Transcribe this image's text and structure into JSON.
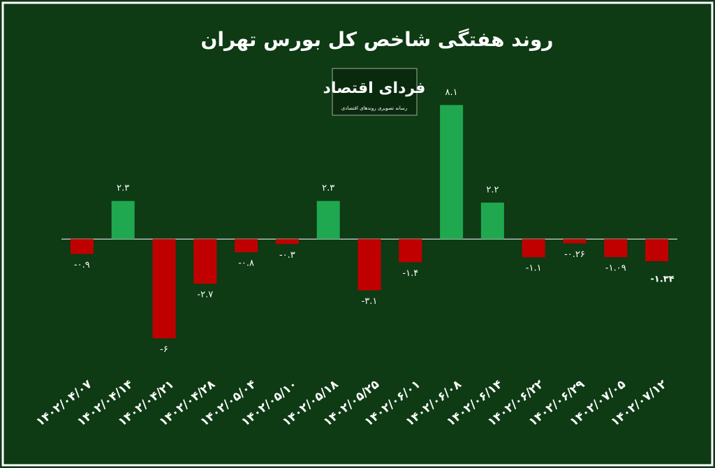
{
  "chart_data": {
    "type": "bar",
    "title": "روند هفتگی شاخص کل بورس تهران",
    "logo": {
      "name": "فردای اقتصاد",
      "tagline": "رسانه تصویری روندهای اقتصادی"
    },
    "categories": [
      "۱۴۰۲/۰۴/۰۷",
      "۱۴۰۲/۰۴/۱۴",
      "۱۴۰۲/۰۴/۲۱",
      "۱۴۰۲/۰۴/۲۸",
      "۱۴۰۲/۰۵/۰۴",
      "۱۴۰۲/۰۵/۱۰",
      "۱۴۰۲/۰۵/۱۸",
      "۱۴۰۲/۰۵/۲۵",
      "۱۴۰۲/۰۶/۰۱",
      "۱۴۰۲/۰۶/۰۸",
      "۱۴۰۲/۰۶/۱۴",
      "۱۴۰۲/۰۶/۲۲",
      "۱۴۰۲/۰۶/۲۹",
      "۱۴۰۲/۰۷/۰۵",
      "۱۴۰۲/۰۷/۱۲"
    ],
    "values": [
      -0.9,
      2.3,
      -6,
      -2.7,
      -0.8,
      -0.3,
      2.3,
      -3.1,
      -1.4,
      8.1,
      2.2,
      -1.1,
      -0.26,
      -1.09,
      -1.34
    ],
    "value_labels": [
      "-۰.۹",
      "۲.۳",
      "-۶",
      "-۲.۷",
      "-۰.۸",
      "-۰.۳",
      "۲.۳",
      "-۳.۱",
      "-۱.۴",
      "۸.۱",
      "۲.۲",
      "-۱.۱",
      "-۰.۲۶",
      "-۱.۰۹",
      "-۱.۳۴"
    ],
    "positive_color": "#1fa84f",
    "negative_color": "#c00000",
    "ylim": [
      -7,
      9
    ]
  }
}
